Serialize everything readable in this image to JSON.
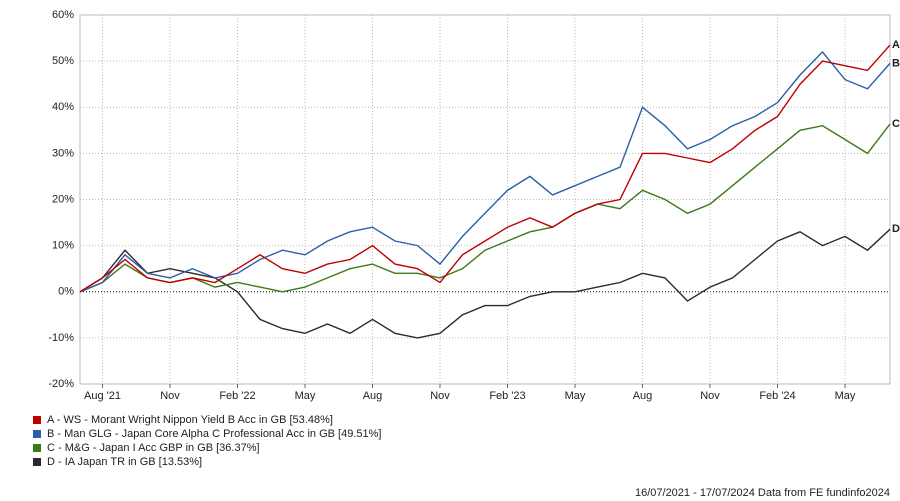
{
  "chart_data": {
    "type": "line",
    "categories": [
      null,
      "Aug '21",
      null,
      null,
      "Nov",
      null,
      null,
      "Feb '22",
      null,
      null,
      "May",
      null,
      null,
      "Aug",
      null,
      null,
      "Nov",
      null,
      null,
      "Feb '23",
      null,
      null,
      "May",
      null,
      null,
      "Aug",
      null,
      null,
      "Nov",
      null,
      null,
      "Feb '24",
      null,
      null,
      "May",
      null,
      null
    ],
    "ylim": [
      -20,
      60
    ],
    "yticks": [
      {
        "value": -20,
        "label": "-20%"
      },
      {
        "value": -10,
        "label": "-10%"
      },
      {
        "value": 0,
        "label": "0%"
      },
      {
        "value": 10,
        "label": "10%"
      },
      {
        "value": 20,
        "label": "20%"
      },
      {
        "value": 30,
        "label": "30%"
      },
      {
        "value": 40,
        "label": "40%"
      },
      {
        "value": 50,
        "label": "50%"
      },
      {
        "value": 60,
        "label": "60%"
      }
    ],
    "grid": true,
    "series": [
      {
        "name": "A - WS - Morant Wright Nippon Yield B Acc in GB [53.48%]",
        "end_label": "A",
        "color": "#c00000",
        "values": [
          0,
          3,
          7,
          3,
          2,
          3,
          2,
          5,
          8,
          5,
          4,
          6,
          7,
          10,
          6,
          5,
          2,
          8,
          11,
          14,
          16,
          14,
          17,
          19,
          20,
          30,
          30,
          29,
          28,
          31,
          35,
          38,
          45,
          50,
          49,
          48,
          53.48
        ]
      },
      {
        "name": "B - Man GLG - Japan Core Alpha C Professional Acc in GB [49.51%]",
        "end_label": "B",
        "color": "#2e5ea8",
        "values": [
          0,
          2,
          8,
          4,
          3,
          5,
          3,
          4,
          7,
          9,
          8,
          11,
          13,
          14,
          11,
          10,
          6,
          12,
          17,
          22,
          25,
          21,
          23,
          25,
          27,
          40,
          36,
          31,
          33,
          36,
          38,
          41,
          47,
          52,
          46,
          44,
          49.51
        ]
      },
      {
        "name": "C - M&G - Japan I Acc GBP in GB [36.37%]",
        "end_label": "C",
        "color": "#3d7a1a",
        "values": [
          0,
          2,
          6,
          3,
          2,
          3,
          1,
          2,
          1,
          0,
          1,
          3,
          5,
          6,
          4,
          4,
          3,
          5,
          9,
          11,
          13,
          14,
          17,
          19,
          18,
          22,
          20,
          17,
          19,
          23,
          27,
          31,
          35,
          36,
          33,
          30,
          36.37
        ]
      },
      {
        "name": "D - IA Japan TR in GB [13.53%]",
        "end_label": "D",
        "color": "#2b2b2b",
        "values": [
          0,
          3,
          9,
          4,
          5,
          4,
          3,
          0,
          -6,
          -8,
          -9,
          -7,
          -9,
          -6,
          -9,
          -10,
          -9,
          -5,
          -3,
          -3,
          -1,
          0,
          0,
          1,
          2,
          4,
          3,
          -2,
          1,
          3,
          7,
          11,
          13,
          10,
          12,
          9,
          13.53
        ]
      }
    ],
    "footer": "16/07/2021 - 17/07/2024 Data from FE fundinfo2024"
  }
}
